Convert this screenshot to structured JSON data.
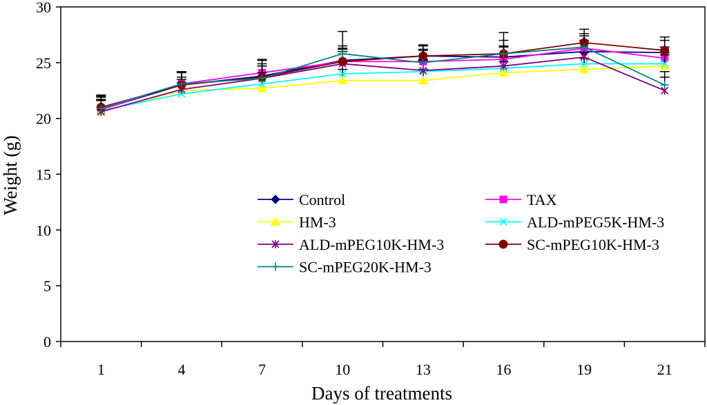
{
  "chart_data": {
    "type": "line",
    "xlabel": "Days of treatments",
    "ylabel": "Weight (g)",
    "ylim": [
      0,
      30
    ],
    "yticks": [
      0,
      5,
      10,
      15,
      20,
      25,
      30
    ],
    "categories": [
      "1",
      "4",
      "7",
      "10",
      "13",
      "16",
      "19",
      "21"
    ],
    "grid": false,
    "legend_position": "center-right",
    "series": [
      {
        "name": "Control",
        "color": "#000080",
        "marker": "diamond",
        "values": [
          20.8,
          23.0,
          23.8,
          25.2,
          25.6,
          25.5,
          26.0,
          25.9
        ],
        "errors": [
          1.2,
          1.2,
          1.4,
          1.3,
          0.9,
          1.0,
          1.0,
          1.1
        ]
      },
      {
        "name": "TAX",
        "color": "#ff00ff",
        "marker": "square",
        "values": [
          20.8,
          23.1,
          24.1,
          25.1,
          25.1,
          25.3,
          26.3,
          25.4
        ],
        "errors": [
          1.1,
          1.1,
          1.2,
          1.1,
          1.0,
          1.1,
          1.1,
          1.0
        ]
      },
      {
        "name": "HM-3",
        "color": "#ffff00",
        "marker": "triangle",
        "values": [
          20.6,
          22.5,
          22.7,
          23.4,
          23.4,
          24.1,
          24.4,
          24.7
        ],
        "errors": [
          1.0,
          1.0,
          1.1,
          1.0,
          1.0,
          1.0,
          1.0,
          1.0
        ]
      },
      {
        "name": "ALD-mPEG5K-HM-3",
        "color": "#00ffff",
        "marker": "x",
        "values": [
          20.7,
          22.2,
          23.1,
          24.0,
          24.2,
          24.5,
          24.9,
          24.9
        ],
        "errors": [
          1.0,
          1.0,
          1.0,
          1.0,
          1.0,
          1.0,
          1.0,
          1.0
        ]
      },
      {
        "name": "ALD-mPEG10K-HM-3",
        "color": "#800080",
        "marker": "asterisk",
        "values": [
          20.6,
          22.6,
          23.6,
          24.9,
          24.3,
          24.7,
          25.5,
          22.5
        ],
        "errors": [
          1.1,
          1.1,
          1.1,
          1.1,
          1.0,
          1.1,
          1.2,
          1.2
        ]
      },
      {
        "name": "SC-mPEG10K-HM-3",
        "color": "#800000",
        "marker": "circle",
        "values": [
          21.0,
          23.0,
          23.7,
          25.1,
          25.6,
          25.8,
          26.8,
          26.1
        ],
        "errors": [
          1.1,
          1.1,
          1.2,
          1.2,
          1.0,
          1.2,
          1.2,
          1.2
        ]
      },
      {
        "name": "SC-mPEG20K-HM-3",
        "color": "#008080",
        "marker": "plus",
        "values": [
          20.9,
          23.1,
          23.6,
          25.8,
          25.0,
          25.8,
          26.4,
          23.0
        ],
        "errors": [
          1.1,
          1.1,
          1.1,
          2.0,
          1.2,
          1.9,
          1.2,
          1.2
        ]
      }
    ]
  }
}
